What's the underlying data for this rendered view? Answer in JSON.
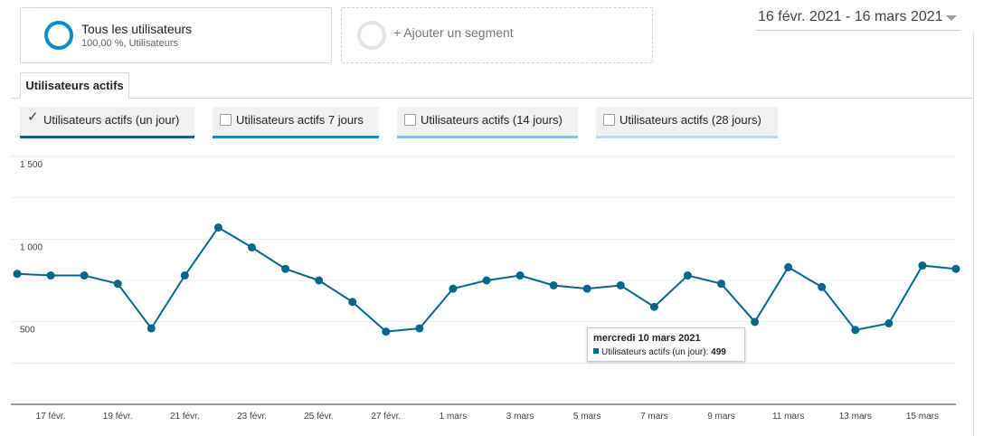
{
  "segments": {
    "primary": {
      "title": "Tous les utilisateurs",
      "subtitle": "100,00 %, Utilisateurs",
      "color": "#058dc7"
    },
    "add_label": "+ Ajouter un segment"
  },
  "date_range": "16 févr. 2021 - 16 mars 2021",
  "tabs": [
    {
      "label": "Utilisateurs actifs",
      "active": true
    }
  ],
  "metrics": [
    {
      "label": "Utilisateurs actifs (un jour)",
      "checked": true,
      "color": "#05668d"
    },
    {
      "label": "Utilisateurs actifs 7 jours",
      "checked": false,
      "color": "#058dc7"
    },
    {
      "label": "Utilisateurs actifs (14 jours)",
      "checked": false,
      "color": "#7fc4e3"
    },
    {
      "label": "Utilisateurs actifs (28 jours)",
      "checked": false,
      "color": "#b3ddef"
    }
  ],
  "chart_data": {
    "type": "line",
    "series": [
      {
        "name": "Utilisateurs actifs (un jour)",
        "color": "#05668d",
        "x": [
          "16 févr.",
          "17 févr.",
          "18 févr.",
          "19 févr.",
          "20 févr.",
          "21 févr.",
          "22 févr.",
          "23 févr.",
          "24 févr.",
          "25 févr.",
          "26 févr.",
          "27 févr.",
          "28 févr.",
          "1 mars",
          "2 mars",
          "3 mars",
          "4 mars",
          "5 mars",
          "6 mars",
          "7 mars",
          "8 mars",
          "9 mars",
          "10 mars",
          "11 mars",
          "12 mars",
          "13 mars",
          "14 mars",
          "15 mars",
          "16 mars"
        ],
        "values": [
          790,
          780,
          780,
          730,
          460,
          780,
          1070,
          950,
          820,
          750,
          620,
          440,
          460,
          700,
          750,
          780,
          720,
          700,
          720,
          590,
          780,
          730,
          499,
          830,
          710,
          450,
          490,
          840,
          820
        ]
      }
    ],
    "ylim": [
      0,
      1500
    ],
    "yticks": [
      500,
      1000,
      1500
    ],
    "ytick_labels": [
      "500",
      "1 000",
      "1 500"
    ],
    "xtick_labels": [
      "17 févr.",
      "19 févr.",
      "21 févr.",
      "23 févr.",
      "25 févr.",
      "27 févr.",
      "1 mars",
      "3 mars",
      "5 mars",
      "7 mars",
      "9 mars",
      "11 mars",
      "13 mars",
      "15 mars"
    ],
    "grid": true
  },
  "tooltip": {
    "title": "mercredi 10 mars 2021",
    "label": "Utilisateurs actifs (un jour):",
    "value": "499"
  }
}
